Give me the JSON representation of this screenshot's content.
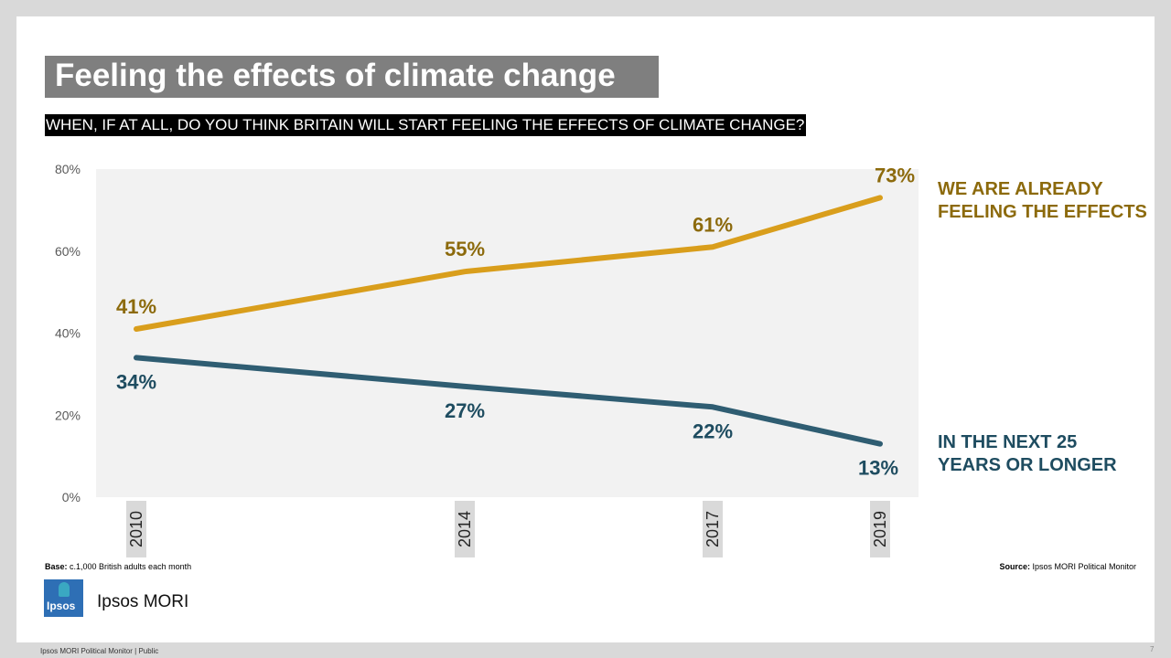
{
  "title": "Feeling the effects of climate change",
  "question": "WHEN, IF AT ALL, DO YOU THINK BRITAIN WILL START FEELING THE EFFECTS OF CLIMATE CHANGE?",
  "base_label": "Base:",
  "base_text": " c.1,000 British adults each month",
  "source_label": "Source:",
  "source_text": " Ipsos MORI Political Monitor",
  "logo_text": "Ipsos",
  "brand": "Ipsos MORI",
  "footer": "Ipsos MORI Political Monitor | Public",
  "page_number": "7",
  "colors": {
    "orange": "#d99e1c",
    "orange_label": "#8c6a0c",
    "teal": "#2f5d72",
    "teal_label": "#1e4c60",
    "plot_bg": "#f2f2f2"
  },
  "chart_data": {
    "type": "line",
    "x": [
      2010,
      2014,
      2017,
      2019
    ],
    "x_tick_labels": [
      "2010",
      "2014",
      "2017",
      "2019"
    ],
    "y_ticks": [
      "0%",
      "20%",
      "40%",
      "60%",
      "80%"
    ],
    "ylim": [
      0,
      80
    ],
    "grid": false,
    "series": [
      {
        "name": "WE ARE ALREADY FEELING THE EFFECTS",
        "legend_lines": [
          "WE ARE ALREADY",
          "FEELING THE EFFECTS"
        ],
        "values": [
          41,
          55,
          61,
          73
        ],
        "labels": [
          "41%",
          "55%",
          "61%",
          "73%"
        ],
        "color": "#d99e1c"
      },
      {
        "name": "IN THE NEXT 25 YEARS OR LONGER",
        "legend_lines": [
          "IN THE NEXT 25",
          "YEARS OR LONGER"
        ],
        "values": [
          34,
          27,
          22,
          13
        ],
        "labels": [
          "34%",
          "27%",
          "22%",
          "13%"
        ],
        "color": "#2f5d72"
      }
    ]
  }
}
